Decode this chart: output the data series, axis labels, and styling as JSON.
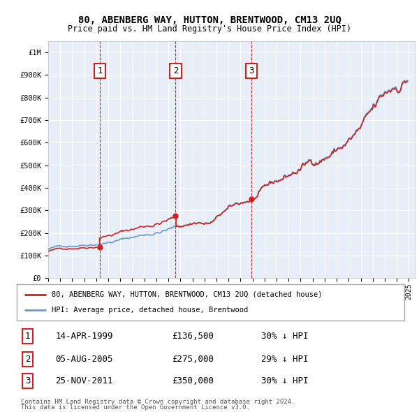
{
  "title": "80, ABENBERG WAY, HUTTON, BRENTWOOD, CM13 2UQ",
  "subtitle": "Price paid vs. HM Land Registry's House Price Index (HPI)",
  "ylim": [
    0,
    1050000
  ],
  "xlim_start": 1995.0,
  "xlim_end": 2025.5,
  "yticks": [
    0,
    100000,
    200000,
    300000,
    400000,
    500000,
    600000,
    700000,
    800000,
    900000,
    1000000
  ],
  "ytick_labels": [
    "£0",
    "£100K",
    "£200K",
    "£300K",
    "£400K",
    "£500K",
    "£600K",
    "£700K",
    "£800K",
    "£900K",
    "£1M"
  ],
  "sale_prices": [
    136500,
    275000,
    350000
  ],
  "sale_labels": [
    "1",
    "2",
    "3"
  ],
  "sale_label_info": [
    {
      "num": "1",
      "date": "14-APR-1999",
      "price": "£136,500",
      "hpi": "30% ↓ HPI"
    },
    {
      "num": "2",
      "date": "05-AUG-2005",
      "price": "£275,000",
      "hpi": "29% ↓ HPI"
    },
    {
      "num": "3",
      "date": "25-NOV-2011",
      "price": "£350,000",
      "hpi": "30% ↓ HPI"
    }
  ],
  "legend_line1": "80, ABENBERG WAY, HUTTON, BRENTWOOD, CM13 2UQ (detached house)",
  "legend_line2": "HPI: Average price, detached house, Brentwood",
  "footer1": "Contains HM Land Registry data © Crown copyright and database right 2024.",
  "footer2": "This data is licensed under the Open Government Licence v3.0.",
  "hpi_color": "#6699cc",
  "sale_line_color": "#cc2222",
  "sale_dot_color": "#cc2222",
  "background_color": "#e8eef8",
  "grid_color": "#ffffff",
  "annotation_box_edge": "#cc2222",
  "sale_year_decimals": [
    1999.29,
    2005.6,
    2011.9
  ]
}
